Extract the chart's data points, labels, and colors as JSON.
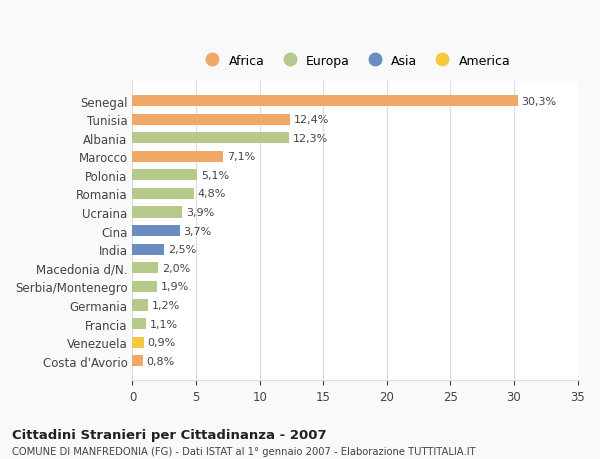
{
  "categories": [
    "Costa d'Avorio",
    "Venezuela",
    "Francia",
    "Germania",
    "Serbia/Montenegro",
    "Macedonia d/N.",
    "India",
    "Cina",
    "Ucraina",
    "Romania",
    "Polonia",
    "Marocco",
    "Albania",
    "Tunisia",
    "Senegal"
  ],
  "values": [
    0.8,
    0.9,
    1.1,
    1.2,
    1.9,
    2.0,
    2.5,
    3.7,
    3.9,
    4.8,
    5.1,
    7.1,
    12.3,
    12.4,
    30.3
  ],
  "labels": [
    "0,8%",
    "0,9%",
    "1,1%",
    "1,2%",
    "1,9%",
    "2,0%",
    "2,5%",
    "3,7%",
    "3,9%",
    "4,8%",
    "5,1%",
    "7,1%",
    "12,3%",
    "12,4%",
    "30,3%"
  ],
  "colors": [
    "#f0a868",
    "#f5c842",
    "#b5c98a",
    "#b5c98a",
    "#b5c98a",
    "#b5c98a",
    "#6b8cbf",
    "#6b8cbf",
    "#b5c98a",
    "#b5c98a",
    "#b5c98a",
    "#f0a868",
    "#b5c98a",
    "#f0a868",
    "#f0a868"
  ],
  "legend_labels": [
    "Africa",
    "Europa",
    "Asia",
    "America"
  ],
  "legend_colors": [
    "#f0a868",
    "#b5c98a",
    "#6b8cbf",
    "#f5c842"
  ],
  "title": "Cittadini Stranieri per Cittadinanza - 2007",
  "subtitle": "COMUNE DI MANFREDONIA (FG) - Dati ISTAT al 1° gennaio 2007 - Elaborazione TUTTITALIA.IT",
  "xlim": [
    0,
    35
  ],
  "xticks": [
    0,
    5,
    10,
    15,
    20,
    25,
    30,
    35
  ],
  "background_color": "#f9f9f9",
  "bar_background": "#ffffff",
  "grid_color": "#dddddd"
}
